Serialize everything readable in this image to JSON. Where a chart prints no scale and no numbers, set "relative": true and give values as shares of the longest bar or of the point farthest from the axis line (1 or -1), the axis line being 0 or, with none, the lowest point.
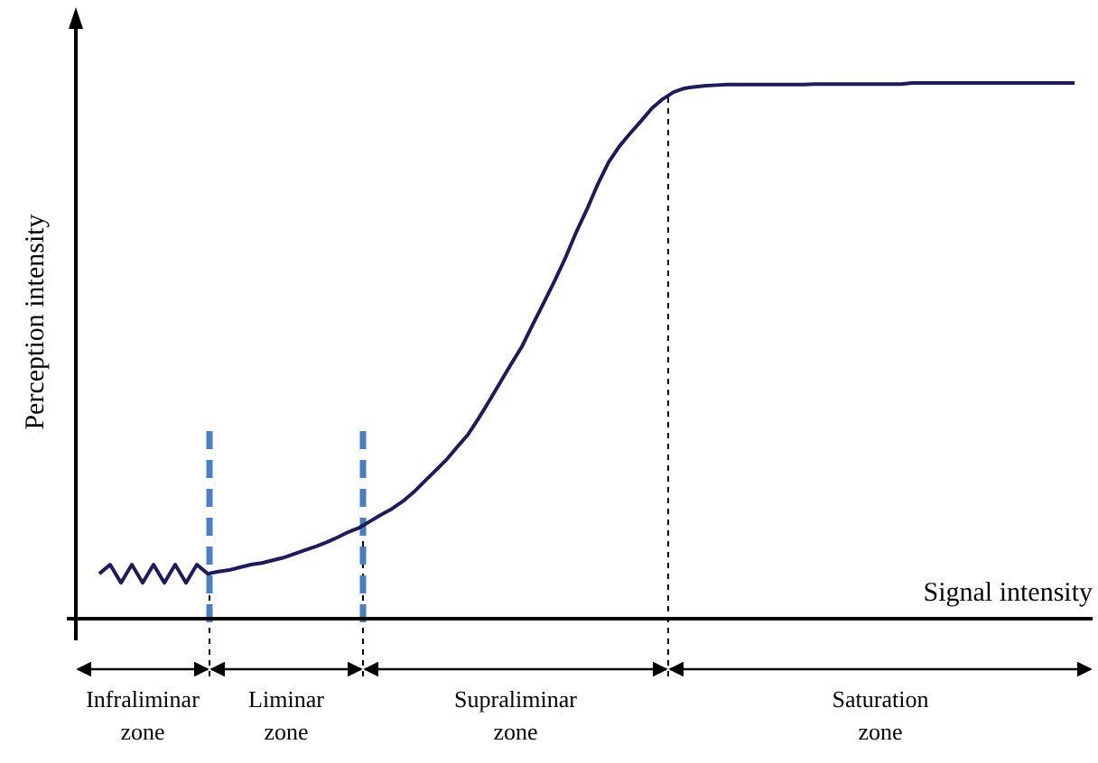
{
  "chart_data": {
    "type": "line",
    "relative": true,
    "xlabel": "Signal intensity",
    "ylabel": "Perception intensity",
    "categories": [
      null,
      null,
      null,
      null,
      null,
      null,
      null,
      null,
      null,
      null,
      null,
      null,
      null,
      null,
      null,
      null,
      null,
      null,
      null,
      null,
      null,
      null,
      null,
      null,
      null,
      null,
      null,
      null,
      null,
      null,
      null,
      null,
      null,
      null,
      null,
      null,
      null,
      null,
      null,
      null,
      null,
      null,
      null,
      null,
      null,
      null,
      null,
      null,
      null,
      null,
      null,
      null,
      null,
      null,
      null,
      null,
      null,
      null,
      null,
      null,
      null,
      null,
      null,
      null,
      null,
      null,
      null,
      null,
      null,
      null,
      null,
      null,
      null,
      null,
      null,
      null,
      null,
      null,
      null,
      null,
      null,
      null,
      null,
      null,
      null,
      null,
      null,
      null,
      null,
      null,
      null
    ],
    "series": [
      {
        "color": "#1c1c5c",
        "values": [
          0.084,
          0.101,
          0.067,
          0.101,
          0.067,
          0.101,
          0.067,
          0.101,
          0.067,
          0.101,
          0.084,
          0.088,
          0.091,
          0.096,
          0.101,
          0.104,
          0.109,
          0.114,
          0.121,
          0.128,
          0.135,
          0.143,
          0.152,
          0.162,
          0.17,
          0.182,
          0.194,
          0.205,
          0.219,
          0.236,
          0.256,
          0.276,
          0.296,
          0.32,
          0.343,
          0.374,
          0.407,
          0.441,
          0.475,
          0.508,
          0.549,
          0.589,
          0.63,
          0.673,
          0.721,
          0.764,
          0.811,
          0.852,
          0.882,
          0.906,
          0.929,
          0.953,
          0.97,
          0.983,
          0.99,
          0.993,
          0.995,
          0.996,
          0.997,
          0.997,
          0.997,
          0.997,
          0.997,
          0.997,
          0.997,
          0.997,
          0.998,
          0.998,
          0.998,
          0.998,
          0.998,
          0.998,
          0.998,
          0.998,
          0.998,
          1,
          1,
          1,
          1,
          1,
          1,
          1,
          1,
          1,
          1,
          1,
          1,
          1,
          1,
          1,
          1
        ]
      }
    ],
    "annotations": [
      "Infraliminar zone",
      "Liminar zone",
      "Supraliminar zone",
      "Saturation zone"
    ],
    "line_style": "solid"
  }
}
